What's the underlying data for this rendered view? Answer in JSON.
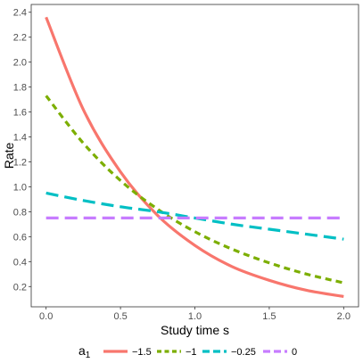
{
  "chart_data": {
    "type": "line",
    "xlabel": "Study time s",
    "ylabel": "Rate",
    "xlim": [
      -0.1,
      2.1
    ],
    "ylim": [
      0.0375,
      2.4625
    ],
    "xticks": [
      0.0,
      0.5,
      1.0,
      1.5,
      2.0
    ],
    "xtick_labels": [
      "0.0",
      "0.5",
      "1.0",
      "1.5",
      "2.0"
    ],
    "yticks": [
      0.2,
      0.4,
      0.6,
      0.8,
      1.0,
      1.2,
      1.4,
      1.6,
      1.8,
      2.0,
      2.2,
      2.4
    ],
    "ytick_labels": [
      "0.2",
      "0.4",
      "0.6",
      "0.8",
      "1.0",
      "1.2",
      "1.4",
      "1.6",
      "1.8",
      "2.0",
      "2.2",
      "2.4"
    ],
    "grid": false,
    "legend": {
      "title": "a",
      "title_subscript": "1",
      "placement": "bottom"
    },
    "series": [
      {
        "name": "−1.5",
        "color": "#F8766D",
        "dash": "solid",
        "x": [
          0.0,
          0.25,
          0.5,
          0.75,
          1.0,
          1.25,
          1.5,
          1.75,
          2.0
        ],
        "y": [
          2.36,
          1.62,
          1.12,
          0.77,
          0.53,
          0.36,
          0.25,
          0.17,
          0.12
        ]
      },
      {
        "name": "−1",
        "color": "#7CAE00",
        "dash": "dashed",
        "x": [
          0.0,
          0.25,
          0.5,
          0.75,
          1.0,
          1.25,
          1.5,
          1.75,
          2.0
        ],
        "y": [
          1.73,
          1.35,
          1.05,
          0.82,
          0.64,
          0.5,
          0.39,
          0.3,
          0.23
        ]
      },
      {
        "name": "−0.25",
        "color": "#00BFC4",
        "dash": "longdash",
        "x": [
          0.0,
          0.25,
          0.5,
          0.75,
          1.0,
          1.25,
          1.5,
          1.75,
          2.0
        ],
        "y": [
          0.95,
          0.89,
          0.84,
          0.8,
          0.75,
          0.7,
          0.66,
          0.62,
          0.58
        ]
      },
      {
        "name": "0",
        "color": "#C77CFF",
        "dash": "longdash",
        "x": [
          0.0,
          0.25,
          0.5,
          0.75,
          1.0,
          1.25,
          1.5,
          1.75,
          2.0
        ],
        "y": [
          0.75,
          0.75,
          0.75,
          0.75,
          0.75,
          0.75,
          0.75,
          0.75,
          0.75
        ]
      }
    ]
  }
}
